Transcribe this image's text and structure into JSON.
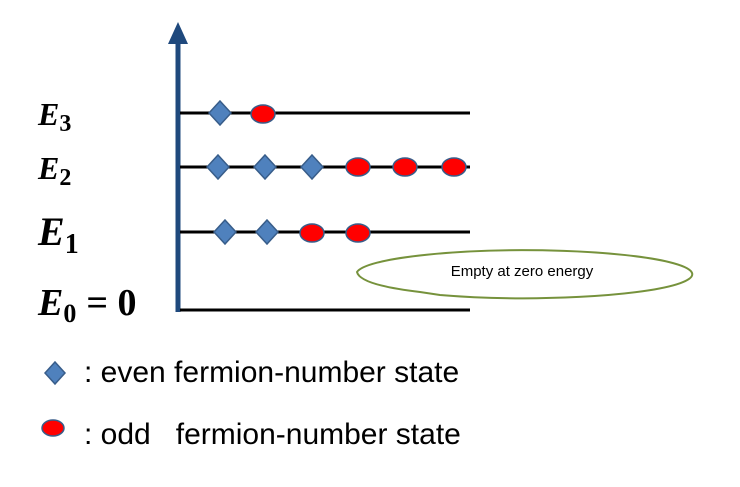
{
  "levels": [
    {
      "symbol": "E",
      "subscript": "3"
    },
    {
      "symbol": "E",
      "subscript": "2"
    },
    {
      "symbol": "E",
      "subscript": "1"
    },
    {
      "symbol": "E",
      "subscript": "0",
      "suffix": "= 0"
    }
  ],
  "callout": "Empty at zero energy",
  "legend": [
    ": even fermion-number state",
    ": odd   fermion-number state"
  ]
}
